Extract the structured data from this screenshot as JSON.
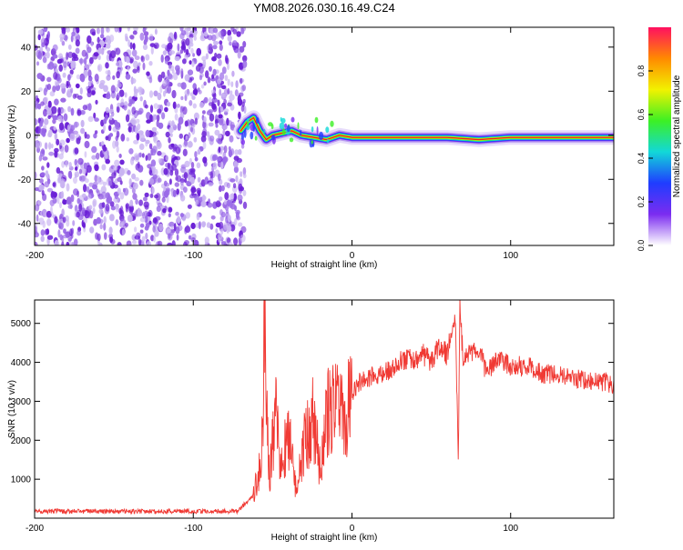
{
  "title": "YM08.2026.030.16.49.C24",
  "colors": {
    "snr_line": "#f03a34",
    "ridge_core": "#e8202a",
    "noise_dark": "#6a1fd6",
    "noise_light": "#c9b4f2"
  },
  "chart_data": [
    {
      "type": "heatmap",
      "name": "spectrogram",
      "xlabel": "Height of straight line (km)",
      "ylabel": "Frequency (Hz)",
      "xlim": [
        -200,
        165
      ],
      "ylim": [
        -50,
        49
      ],
      "x_ticks": [
        -200,
        -100,
        0,
        100
      ],
      "y_ticks": [
        -40,
        -20,
        0,
        20,
        40
      ],
      "noise_region_x": [
        -200,
        -72
      ],
      "signal_region_x": [
        -72,
        165
      ],
      "ridge_frequency_hz": -1,
      "ridge_points": [
        [
          -70,
          2
        ],
        [
          -66,
          6
        ],
        [
          -62,
          8
        ],
        [
          -58,
          2
        ],
        [
          -54,
          -2
        ],
        [
          -50,
          0
        ],
        [
          -44,
          1
        ],
        [
          -38,
          2
        ],
        [
          -32,
          0
        ],
        [
          -24,
          -1
        ],
        [
          -16,
          -2
        ],
        [
          -8,
          0
        ],
        [
          0,
          -1
        ],
        [
          20,
          -1
        ],
        [
          40,
          -1
        ],
        [
          60,
          -1
        ],
        [
          80,
          -2
        ],
        [
          100,
          -1
        ],
        [
          165,
          -1
        ]
      ],
      "colorbar": {
        "label": "Normalized spectral amplitude",
        "range": [
          0,
          1
        ],
        "ticks": [
          0.0,
          0.2,
          0.4,
          0.6,
          0.8
        ],
        "tick_labels": [
          "0.0",
          "0.2",
          "0.4",
          "0.6",
          "0.8"
        ],
        "colormap": [
          "#ffffff",
          "#7b2cf0",
          "#1f3dff",
          "#12d8d8",
          "#3cf024",
          "#f2f200",
          "#ff8a00",
          "#ff1060"
        ]
      }
    },
    {
      "type": "line",
      "name": "snr",
      "xlabel": "Height of straight line (km)",
      "ylabel": "SNR (10 * v/v)",
      "xlim": [
        -200,
        165
      ],
      "ylim": [
        0,
        5600
      ],
      "x_ticks": [
        -200,
        -100,
        0,
        100
      ],
      "y_ticks": [
        1000,
        2000,
        3000,
        4000,
        5000
      ],
      "series": [
        {
          "name": "SNR",
          "x": [
            -200,
            -150,
            -100,
            -72,
            -62,
            -57,
            -55,
            -52,
            -48,
            -45,
            -40,
            -35,
            -30,
            -25,
            -20,
            -15,
            -10,
            -5,
            0,
            5,
            10,
            20,
            30,
            40,
            45,
            50,
            55,
            60,
            65,
            67,
            68,
            70,
            75,
            80,
            85,
            90,
            95,
            100,
            110,
            120,
            130,
            140,
            150,
            160,
            165
          ],
          "y": [
            180,
            170,
            175,
            180,
            600,
            1500,
            4900,
            1000,
            2800,
            1200,
            2300,
            700,
            1900,
            2600,
            1300,
            2700,
            2900,
            2500,
            3200,
            3500,
            3600,
            3700,
            4000,
            4100,
            4200,
            4000,
            4400,
            4200,
            5400,
            1500,
            5300,
            4100,
            4200,
            4300,
            3700,
            4000,
            4000,
            3900,
            3900,
            3700,
            3700,
            3600,
            3500,
            3500,
            3400
          ]
        }
      ]
    }
  ]
}
